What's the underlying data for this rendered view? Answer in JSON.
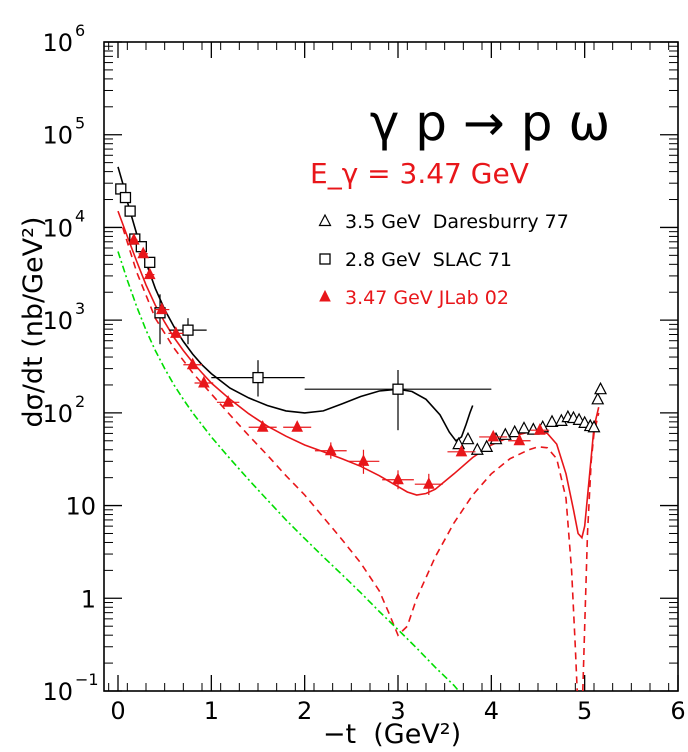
{
  "chart_data": {
    "type": "scatter",
    "title": "γ p → p ω",
    "subtitle": "E_γ = 3.47 GeV",
    "xlabel": "−t  (GeV²)",
    "ylabel": "dσ/dt (nb/GeV²)",
    "xlim": [
      -0.15,
      6
    ],
    "ylim": [
      0.1,
      1000000
    ],
    "yscale": "log",
    "x_ticks": [
      0,
      1,
      2,
      3,
      4,
      5,
      6
    ],
    "y_ticks": [
      {
        "value": 0.1,
        "base": "10",
        "exp": "−1"
      },
      {
        "value": 1,
        "base": "1",
        "exp": ""
      },
      {
        "value": 10,
        "base": "10",
        "exp": ""
      },
      {
        "value": 100,
        "base": "10",
        "exp": "2"
      },
      {
        "value": 1000,
        "base": "10",
        "exp": "3"
      },
      {
        "value": 10000,
        "base": "10",
        "exp": "4"
      },
      {
        "value": 100000,
        "base": "10",
        "exp": "5"
      },
      {
        "value": 1000000,
        "base": "10",
        "exp": "6"
      }
    ],
    "grid": false,
    "legend_position": "top-right",
    "colors": {
      "black": "#000000",
      "red": "#e8161a",
      "green": "#00dd00"
    },
    "series": [
      {
        "name": "3.5 GeV  Daresburry 77",
        "marker": "triangle-open",
        "color": "#000000",
        "points": [
          {
            "x": 3.65,
            "y": 46
          },
          {
            "x": 3.75,
            "y": 52
          },
          {
            "x": 3.85,
            "y": 40
          },
          {
            "x": 3.95,
            "y": 43
          },
          {
            "x": 4.05,
            "y": 52
          },
          {
            "x": 4.15,
            "y": 58
          },
          {
            "x": 4.25,
            "y": 62
          },
          {
            "x": 4.35,
            "y": 68
          },
          {
            "x": 4.45,
            "y": 66
          },
          {
            "x": 4.55,
            "y": 70
          },
          {
            "x": 4.65,
            "y": 80
          },
          {
            "x": 4.75,
            "y": 82
          },
          {
            "x": 4.82,
            "y": 90
          },
          {
            "x": 4.88,
            "y": 88
          },
          {
            "x": 4.94,
            "y": 84
          },
          {
            "x": 5.0,
            "y": 78
          },
          {
            "x": 5.06,
            "y": 72
          },
          {
            "x": 5.1,
            "y": 70
          },
          {
            "x": 5.14,
            "y": 140
          },
          {
            "x": 5.17,
            "y": 180
          }
        ]
      },
      {
        "name": "2.8 GeV  SLAC 71",
        "marker": "square-open",
        "color": "#000000",
        "points": [
          {
            "x": 0.03,
            "y": 26000
          },
          {
            "x": 0.08,
            "y": 21000
          },
          {
            "x": 0.13,
            "y": 15000
          },
          {
            "x": 0.18,
            "y": 7500
          },
          {
            "x": 0.25,
            "y": 6200
          },
          {
            "x": 0.34,
            "y": 4200
          },
          {
            "x": 0.45,
            "y": 1200,
            "xerr": 0.05,
            "ylo": 550,
            "yhi": 1900
          },
          {
            "x": 0.75,
            "y": 780,
            "xerr": 0.2,
            "ylo": 550,
            "yhi": 1050
          },
          {
            "x": 1.5,
            "y": 240,
            "xerr": 0.5,
            "ylo": 150,
            "yhi": 370
          },
          {
            "x": 3.0,
            "y": 180,
            "xerr": 1.0,
            "ylo": 65,
            "yhi": 290
          }
        ]
      },
      {
        "name": "3.47 GeV JLab 02",
        "marker": "triangle-filled",
        "color": "#e8161a",
        "points": [
          {
            "x": 0.17,
            "y": 7300,
            "xerr": 0.04
          },
          {
            "x": 0.27,
            "y": 5200,
            "xerr": 0.05
          },
          {
            "x": 0.34,
            "y": 3100,
            "xerr": 0.05
          },
          {
            "x": 0.47,
            "y": 1300,
            "xerr": 0.08
          },
          {
            "x": 0.62,
            "y": 720,
            "xerr": 0.08
          },
          {
            "x": 0.8,
            "y": 330,
            "xerr": 0.1
          },
          {
            "x": 0.92,
            "y": 210,
            "xerr": 0.1
          },
          {
            "x": 1.18,
            "y": 130,
            "xerr": 0.12
          },
          {
            "x": 1.55,
            "y": 70,
            "xerr": 0.15
          },
          {
            "x": 1.92,
            "y": 70,
            "xerr": 0.15
          },
          {
            "x": 2.28,
            "y": 39,
            "xerr": 0.17,
            "ylo": 32,
            "yhi": 48
          },
          {
            "x": 2.63,
            "y": 30,
            "xerr": 0.17,
            "ylo": 22,
            "yhi": 40
          },
          {
            "x": 3.0,
            "y": 19,
            "xerr": 0.17,
            "ylo": 15,
            "yhi": 24
          },
          {
            "x": 3.33,
            "y": 17,
            "xerr": 0.15,
            "ylo": 13,
            "yhi": 22
          },
          {
            "x": 3.68,
            "y": 38,
            "xerr": 0.15
          },
          {
            "x": 4.02,
            "y": 55,
            "xerr": 0.15
          },
          {
            "x": 4.3,
            "y": 50,
            "xerr": 0.12
          },
          {
            "x": 4.52,
            "y": 65,
            "xerr": 0.1
          }
        ]
      }
    ],
    "curves": [
      {
        "color": "#000000",
        "style": "solid",
        "points": [
          [
            0.0,
            45000
          ],
          [
            0.05,
            30000
          ],
          [
            0.1,
            19000
          ],
          [
            0.2,
            8500
          ],
          [
            0.3,
            4200
          ],
          [
            0.4,
            2200
          ],
          [
            0.5,
            1300
          ],
          [
            0.6,
            850
          ],
          [
            0.7,
            590
          ],
          [
            0.8,
            430
          ],
          [
            0.9,
            330
          ],
          [
            1.0,
            265
          ],
          [
            1.2,
            185
          ],
          [
            1.4,
            145
          ],
          [
            1.6,
            120
          ],
          [
            1.8,
            105
          ],
          [
            2.0,
            100
          ],
          [
            2.2,
            105
          ],
          [
            2.4,
            125
          ],
          [
            2.6,
            150
          ],
          [
            2.8,
            172
          ],
          [
            3.0,
            180
          ],
          [
            3.15,
            170
          ],
          [
            3.3,
            140
          ],
          [
            3.45,
            95
          ],
          [
            3.55,
            62
          ],
          [
            3.62,
            50
          ],
          [
            3.68,
            55
          ],
          [
            3.73,
            75
          ],
          [
            3.77,
            100
          ],
          [
            3.8,
            120
          ]
        ]
      },
      {
        "color": "#e8161a",
        "style": "solid",
        "points": [
          [
            0.0,
            15000
          ],
          [
            0.1,
            8000
          ],
          [
            0.2,
            4300
          ],
          [
            0.3,
            2400
          ],
          [
            0.4,
            1450
          ],
          [
            0.5,
            950
          ],
          [
            0.6,
            650
          ],
          [
            0.7,
            470
          ],
          [
            0.8,
            350
          ],
          [
            0.9,
            270
          ],
          [
            1.0,
            210
          ],
          [
            1.2,
            140
          ],
          [
            1.4,
            98
          ],
          [
            1.6,
            72
          ],
          [
            1.8,
            56
          ],
          [
            2.0,
            45
          ],
          [
            2.2,
            38
          ],
          [
            2.4,
            32
          ],
          [
            2.6,
            26.5
          ],
          [
            2.8,
            21
          ],
          [
            3.0,
            16
          ],
          [
            3.1,
            14
          ],
          [
            3.2,
            13
          ],
          [
            3.3,
            13.5
          ],
          [
            3.4,
            15
          ],
          [
            3.6,
            22
          ],
          [
            3.8,
            33
          ],
          [
            4.0,
            45
          ],
          [
            4.2,
            55
          ],
          [
            4.4,
            62
          ],
          [
            4.5,
            63
          ],
          [
            4.6,
            60
          ],
          [
            4.7,
            46
          ],
          [
            4.8,
            22
          ],
          [
            4.88,
            9
          ],
          [
            4.93,
            5
          ],
          [
            4.97,
            4.5
          ],
          [
            5.0,
            6
          ],
          [
            5.05,
            20
          ],
          [
            5.1,
            70
          ],
          [
            5.15,
            115
          ]
        ]
      },
      {
        "color": "#e8161a",
        "style": "dashed",
        "points": [
          [
            0.05,
            10000
          ],
          [
            0.2,
            3300
          ],
          [
            0.4,
            1050
          ],
          [
            0.6,
            500
          ],
          [
            0.8,
            270
          ],
          [
            1.0,
            160
          ],
          [
            1.2,
            95
          ],
          [
            1.4,
            57
          ],
          [
            1.6,
            35
          ],
          [
            1.8,
            21
          ],
          [
            2.0,
            13
          ],
          [
            2.2,
            7.5
          ],
          [
            2.4,
            4.3
          ],
          [
            2.6,
            2.4
          ],
          [
            2.8,
            1.2
          ],
          [
            2.9,
            0.7
          ],
          [
            3.0,
            0.4
          ],
          [
            3.1,
            0.5
          ],
          [
            3.2,
            1.0
          ],
          [
            3.4,
            2.8
          ],
          [
            3.6,
            6.5
          ],
          [
            3.8,
            13
          ],
          [
            4.0,
            22
          ],
          [
            4.2,
            32
          ],
          [
            4.4,
            40
          ],
          [
            4.5,
            43
          ],
          [
            4.6,
            42
          ],
          [
            4.7,
            32
          ],
          [
            4.8,
            12
          ],
          [
            4.86,
            2
          ],
          [
            4.9,
            0.3
          ],
          [
            4.92,
            0.1
          ]
        ]
      },
      {
        "color": "#e8161a",
        "style": "dashed",
        "points": [
          [
            4.98,
            0.1
          ],
          [
            5.0,
            0.5
          ],
          [
            5.03,
            5
          ],
          [
            5.07,
            30
          ],
          [
            5.1,
            60
          ],
          [
            5.15,
            100
          ]
        ]
      },
      {
        "color": "#00dd00",
        "style": "dashdot",
        "points": [
          [
            0.0,
            5500
          ],
          [
            0.1,
            2700
          ],
          [
            0.2,
            1400
          ],
          [
            0.3,
            780
          ],
          [
            0.4,
            470
          ],
          [
            0.5,
            300
          ],
          [
            0.6,
            200
          ],
          [
            0.7,
            140
          ],
          [
            0.8,
            100
          ],
          [
            1.0,
            55
          ],
          [
            1.2,
            32
          ],
          [
            1.4,
            19
          ],
          [
            1.6,
            11.5
          ],
          [
            1.8,
            7
          ],
          [
            2.0,
            4.4
          ],
          [
            2.2,
            2.8
          ],
          [
            2.4,
            1.8
          ],
          [
            2.6,
            1.15
          ],
          [
            2.8,
            0.72
          ],
          [
            3.0,
            0.46
          ],
          [
            3.2,
            0.29
          ],
          [
            3.4,
            0.18
          ],
          [
            3.6,
            0.115
          ],
          [
            3.65,
            0.1
          ]
        ]
      }
    ]
  }
}
